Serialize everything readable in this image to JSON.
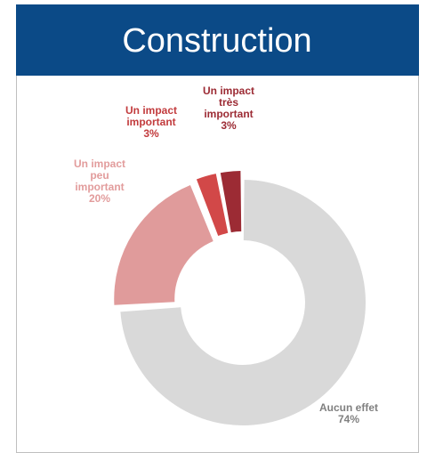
{
  "chart_data": {
    "type": "donut",
    "title": "Construction",
    "categories": [
      "Aucun effet",
      "Un impact\npeu\nimportant",
      "Un impact\nimportant",
      "Un impact\ntrès\nimportant"
    ],
    "values": [
      74,
      20,
      3,
      3
    ],
    "value_labels": [
      "74%",
      "20%",
      "3%",
      "3%"
    ],
    "colors": [
      "#d9d9d9",
      "#e09b9b",
      "#d24848",
      "#9c2b34"
    ],
    "label_colors": [
      "#808080",
      "#e29c9c",
      "#c23b3d",
      "#9c2b34"
    ]
  }
}
